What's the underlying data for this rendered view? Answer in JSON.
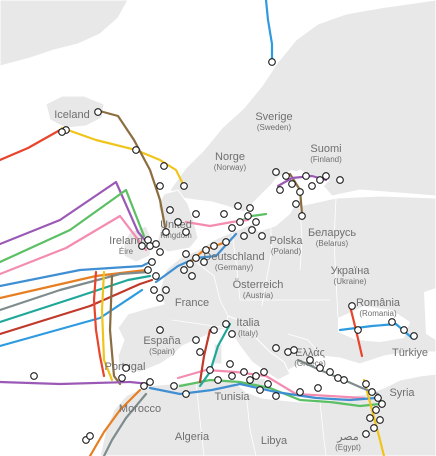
{
  "map": {
    "colors": {
      "water": "#ffffff",
      "land": "#e8e8e8",
      "border": "#ffffff",
      "label": "#6f6f6f",
      "landing_fill": "#ffffff",
      "landing_stroke": "#1a1a1a"
    },
    "labels": [
      {
        "name": "Iceland"
      },
      {
        "name": "Norge",
        "sub": "(Norway)"
      },
      {
        "name": "Sverige",
        "sub": "(Sweden)"
      },
      {
        "name": "Suomi",
        "sub": "(Finland)"
      },
      {
        "name": "United",
        "sub": "Kingdom"
      },
      {
        "name": "Ireland",
        "sub": "Éire"
      },
      {
        "name": "Deutschland",
        "sub": "(Germany)"
      },
      {
        "name": "Polska",
        "sub": "(Poland)"
      },
      {
        "name": "Беларусь",
        "sub": "(Belarus)"
      },
      {
        "name": "Україна",
        "sub": "(Ukraine)"
      },
      {
        "name": "France"
      },
      {
        "name": "Österreich",
        "sub": "(Austria)"
      },
      {
        "name": "România",
        "sub": "(Romania)"
      },
      {
        "name": "España",
        "sub": "(Spain)"
      },
      {
        "name": "Italia",
        "sub": "(Italy)"
      },
      {
        "name": "Ελλάς",
        "sub": "(Greece)"
      },
      {
        "name": "Türkiye"
      },
      {
        "name": "Tunisia"
      },
      {
        "name": "Morocco"
      },
      {
        "name": "Algeria"
      },
      {
        "name": "Libya"
      },
      {
        "name": "مصر",
        "sub": "(Egypt)"
      },
      {
        "name": "Syria"
      },
      {
        "name": "Portugal"
      }
    ],
    "cables": [
      {
        "color": "#2e9be0"
      },
      {
        "color": "#e8452c"
      },
      {
        "color": "#f0c419"
      },
      {
        "color": "#8c6d3f"
      },
      {
        "color": "#9b59b6"
      },
      {
        "color": "#5bbf63"
      },
      {
        "color": "#f48cb1"
      },
      {
        "color": "#3f8fd2"
      },
      {
        "color": "#e67e22"
      },
      {
        "color": "#7f8c8d"
      },
      {
        "color": "#1fa89a"
      },
      {
        "color": "#c0392b"
      }
    ]
  }
}
